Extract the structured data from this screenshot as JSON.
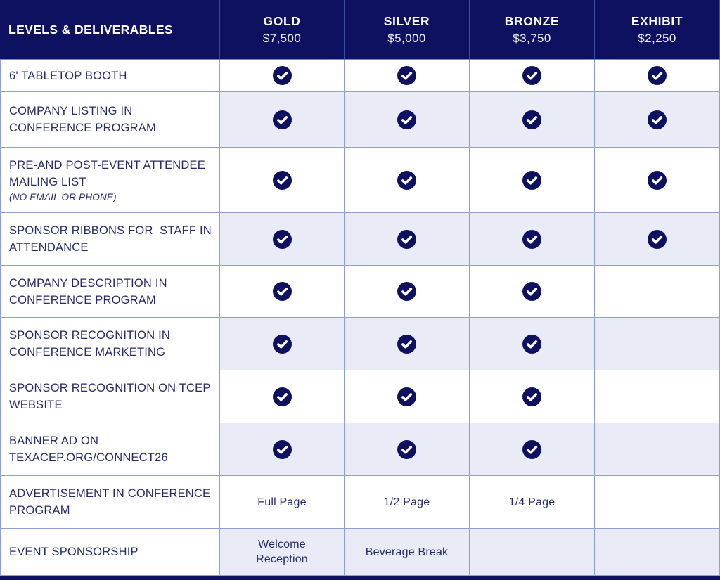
{
  "header": {
    "label": "LEVELS & DELIVERABLES",
    "tiers": [
      {
        "name": "GOLD",
        "price": "$7,500"
      },
      {
        "name": "SILVER",
        "price": "$5,000"
      },
      {
        "name": "BRONZE",
        "price": "$3,750"
      },
      {
        "name": "EXHIBIT",
        "price": "$2,250"
      }
    ]
  },
  "rows": [
    {
      "label_lines": [
        "6' TABLETOP BOOTH"
      ],
      "note": "",
      "cells": [
        "check",
        "check",
        "check",
        "check"
      ]
    },
    {
      "label_lines": [
        "COMPANY LISTING IN",
        "CONFERENCE PROGRAM"
      ],
      "note": "",
      "cells": [
        "check",
        "check",
        "check",
        "check"
      ]
    },
    {
      "label_lines": [
        "PRE-AND POST-EVENT ATTENDEE",
        "MAILING LIST"
      ],
      "note": "(NO EMAIL OR PHONE)",
      "cells": [
        "check",
        "check",
        "check",
        "check"
      ]
    },
    {
      "label_lines": [
        "SPONSOR RIBBONS FOR  STAFF IN",
        "ATTENDANCE"
      ],
      "note": "",
      "cells": [
        "check",
        "check",
        "check",
        "check"
      ]
    },
    {
      "label_lines": [
        "COMPANY DESCRIPTION IN",
        "CONFERENCE PROGRAM"
      ],
      "note": "",
      "cells": [
        "check",
        "check",
        "check",
        ""
      ]
    },
    {
      "label_lines": [
        "SPONSOR RECOGNITION IN",
        "CONFERENCE MARKETING"
      ],
      "note": "",
      "cells": [
        "check",
        "check",
        "check",
        ""
      ]
    },
    {
      "label_lines": [
        "SPONSOR RECOGNITION ON TCEP",
        "WEBSITE"
      ],
      "note": "",
      "cells": [
        "check",
        "check",
        "check",
        ""
      ]
    },
    {
      "label_lines": [
        "BANNER AD ON",
        "TEXACEP.ORG/CONNECT26"
      ],
      "note": "",
      "cells": [
        "check",
        "check",
        "check",
        ""
      ]
    },
    {
      "label_lines": [
        "ADVERTISEMENT IN CONFERENCE",
        "PROGRAM"
      ],
      "note": "",
      "cells": [
        "Full Page",
        "1/2 Page",
        "1/4 Page",
        ""
      ]
    },
    {
      "label_lines": [
        "EVENT SPONSORSHIP"
      ],
      "note": "",
      "cells": [
        "Welcome\nReception",
        "Beverage Break",
        "",
        ""
      ]
    }
  ],
  "icons": {
    "check": "check-circle-icon"
  },
  "colors": {
    "navy": "#0e1060",
    "row_alt": "#e9ebf6",
    "grid_border": "#8fa0d0",
    "header_divider": "#3e4a99",
    "text_navy": "#262b63",
    "header_text": "#ffffff"
  }
}
